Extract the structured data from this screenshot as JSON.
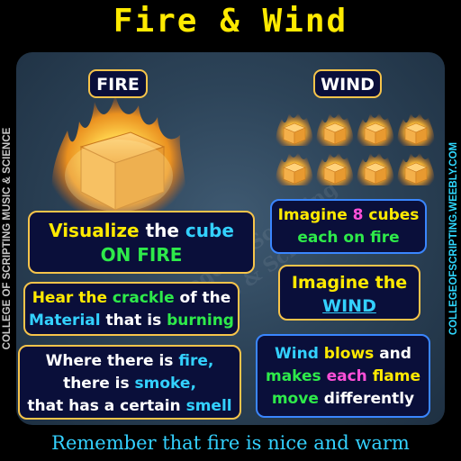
{
  "title": "Fire & Wind",
  "side_left": "COLLEGE OF SCRIPTING MUSIC & SCIENCE",
  "side_right": "COLLEGEOFSCRIPTING.WEEBLY.COM",
  "watermark": "College of Scripting Music & Science",
  "labels": {
    "fire": "FIRE",
    "wind": "WIND"
  },
  "boxes": {
    "fire_cube": {
      "w1": "Visualize",
      "w2": " the ",
      "w3": "cube",
      "w4": "ON FIRE"
    },
    "crackle": {
      "w1": "Hear the ",
      "w2": "crackle",
      "w3": " of the",
      "w4": "Material",
      "w5": " that is ",
      "w6": "burning"
    },
    "smoke": {
      "w1": "Where there is ",
      "w2": "fire,",
      "w3": "there is ",
      "w4": "smoke,",
      "w5": "that has a certain ",
      "w6": "smell"
    },
    "eight_cubes": {
      "w1": "Imagine ",
      "w2": "8",
      "w3": " cubes",
      "w4": "each on fire"
    },
    "wind": {
      "w1": "Imagine the",
      "w2": "WIND"
    },
    "flames": {
      "w1": "Wind ",
      "w2": "blows",
      "w3": " and",
      "w4": "makes ",
      "w5": "each",
      "w6": " flame",
      "w7": "move",
      "w8": " differently"
    }
  },
  "footer": "Remember that fire is nice and warm",
  "colors": {
    "title": "#ffea00",
    "accent_yellow": "#ffea00",
    "accent_green": "#2eea4a",
    "accent_cyan": "#33d1ff",
    "accent_magenta": "#ff4fd8",
    "box_border_gold": "#f7c44a",
    "box_border_blue": "#3a86ff",
    "box_fill": "#0a0f3a"
  }
}
